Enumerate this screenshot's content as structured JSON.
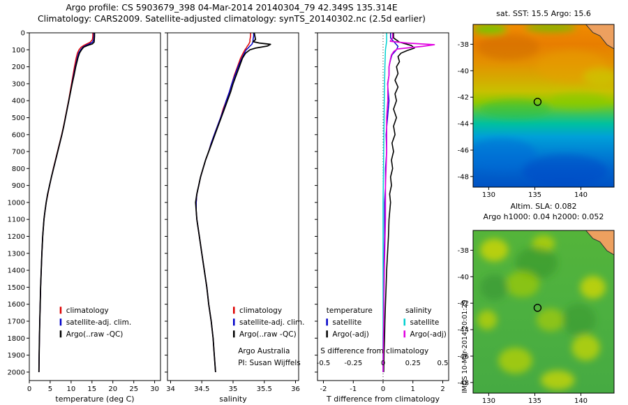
{
  "header": {
    "title_line1": "Argo profile: CS 5903679_398 04-Mar-2014 20140304_79 42.349S 135.314E",
    "title_line2": "Climatology: CARS2009. Satellite-adjusted climatology: synTS_20140302.nc (2.5d earlier)"
  },
  "watermark": "IMOS 10-Mar-2014 20:01:29",
  "depth_ticks": [
    0,
    100,
    200,
    300,
    400,
    500,
    600,
    700,
    800,
    900,
    1000,
    1100,
    1200,
    1300,
    1400,
    1500,
    1600,
    1700,
    1800,
    1900,
    2000
  ],
  "chart_data": [
    {
      "id": "temperature",
      "type": "line",
      "xlabel": "temperature (deg C)",
      "xlim": [
        0,
        31.4
      ],
      "ylim": [
        0,
        2050
      ],
      "xticks": [
        0,
        5,
        10,
        15,
        20,
        25,
        30
      ],
      "show_depth_labels": true,
      "depth": [
        0,
        20,
        40,
        55,
        65,
        75,
        85,
        100,
        120,
        150,
        200,
        250,
        300,
        350,
        400,
        450,
        500,
        550,
        600,
        650,
        700,
        750,
        800,
        850,
        900,
        950,
        1000,
        1050,
        1100,
        1200,
        1300,
        1400,
        1500,
        1600,
        1700,
        1800,
        1900,
        2000
      ],
      "series": [
        {
          "name": "climatology",
          "color": "#dd0000",
          "width": 1.5,
          "values": [
            15.2,
            15.2,
            15.1,
            14.6,
            13.8,
            13.0,
            12.4,
            11.9,
            11.5,
            11.2,
            10.8,
            10.45,
            10.1,
            9.75,
            9.4,
            9.0,
            8.6,
            8.2,
            7.75,
            7.25,
            6.75,
            6.25,
            5.75,
            5.3,
            4.85,
            4.45,
            4.05,
            3.75,
            3.5,
            3.2,
            3.0,
            2.85,
            2.7,
            2.6,
            2.5,
            2.42,
            2.35,
            2.3
          ]
        },
        {
          "name": "satellite-adj. clim.",
          "color": "#0000c8",
          "width": 1.5,
          "values": [
            15.45,
            15.45,
            15.4,
            15.1,
            14.4,
            13.5,
            12.8,
            12.3,
            11.8,
            11.45,
            11.0,
            10.6,
            10.2,
            9.85,
            9.45,
            9.05,
            8.65,
            8.25,
            7.8,
            7.3,
            6.8,
            6.3,
            5.8,
            5.3,
            4.85,
            4.4,
            4.05,
            3.75,
            3.5,
            3.2,
            3.0,
            2.85,
            2.7,
            2.6,
            2.5,
            2.42,
            2.35,
            2.3
          ]
        },
        {
          "name": "Argo(..raw -QC)",
          "color": "#000000",
          "width": 1.8,
          "values": [
            15.6,
            15.6,
            15.55,
            15.5,
            15.1,
            13.9,
            13.0,
            12.5,
            12.0,
            11.6,
            11.1,
            10.7,
            10.25,
            9.85,
            9.45,
            9.05,
            8.65,
            8.25,
            7.8,
            7.3,
            6.8,
            6.3,
            5.8,
            5.3,
            4.85,
            4.4,
            4.05,
            3.75,
            3.5,
            3.2,
            3.0,
            2.85,
            2.7,
            2.6,
            2.5,
            2.42,
            2.35,
            2.3
          ]
        }
      ],
      "legend": {
        "items": [
          {
            "label": "climatology",
            "color": "#dd0000",
            "x": 8.8,
            "y": 1650
          },
          {
            "label": "satellite-adj. clim.",
            "color": "#0000c8",
            "x": 8.8,
            "y": 1720
          },
          {
            "label": "Argo(..raw -QC)",
            "color": "#000000",
            "x": 8.8,
            "y": 1790
          }
        ]
      }
    },
    {
      "id": "salinity",
      "type": "line",
      "xlabel": "salinity",
      "xlim": [
        33.95,
        36.05
      ],
      "ylim": [
        0,
        2050
      ],
      "xticks": [
        34,
        34.5,
        35,
        35.5,
        36
      ],
      "show_depth_labels": false,
      "depth": [
        0,
        20,
        40,
        52,
        60,
        68,
        78,
        90,
        100,
        120,
        150,
        200,
        250,
        300,
        350,
        400,
        450,
        500,
        550,
        600,
        650,
        700,
        750,
        800,
        850,
        900,
        950,
        1000,
        1050,
        1100,
        1200,
        1300,
        1400,
        1500,
        1600,
        1700,
        1800,
        1900,
        2000
      ],
      "series": [
        {
          "name": "climatology",
          "color": "#dd0000",
          "width": 1.5,
          "values": [
            35.28,
            35.28,
            35.27,
            35.27,
            35.26,
            35.25,
            35.23,
            35.21,
            35.19,
            35.16,
            35.12,
            35.07,
            35.02,
            34.98,
            34.94,
            34.89,
            34.84,
            34.8,
            34.75,
            34.7,
            34.65,
            34.61,
            34.56,
            34.52,
            34.48,
            34.45,
            34.42,
            34.41,
            34.41,
            34.42,
            34.46,
            34.5,
            34.54,
            34.58,
            34.61,
            34.65,
            34.68,
            34.7,
            34.72
          ]
        },
        {
          "name": "satellite-adj. clim.",
          "color": "#0000c8",
          "width": 1.5,
          "values": [
            35.33,
            35.33,
            35.32,
            35.32,
            35.31,
            35.3,
            35.27,
            35.24,
            35.21,
            35.18,
            35.14,
            35.08,
            35.03,
            34.98,
            34.94,
            34.89,
            34.85,
            34.8,
            34.75,
            34.7,
            34.65,
            34.61,
            34.56,
            34.52,
            34.48,
            34.45,
            34.42,
            34.41,
            34.41,
            34.42,
            34.46,
            34.5,
            34.54,
            34.58,
            34.61,
            34.65,
            34.68,
            34.7,
            34.72
          ]
        },
        {
          "name": "Argo(..raw -QC)",
          "color": "#000000",
          "width": 1.8,
          "values": [
            35.34,
            35.35,
            35.36,
            35.32,
            35.42,
            35.6,
            35.55,
            35.36,
            35.27,
            35.2,
            35.15,
            35.1,
            35.05,
            35.0,
            34.96,
            34.91,
            34.86,
            34.81,
            34.76,
            34.71,
            34.66,
            34.61,
            34.56,
            34.52,
            34.48,
            34.45,
            34.42,
            34.4,
            34.41,
            34.42,
            34.46,
            34.5,
            34.54,
            34.58,
            34.61,
            34.65,
            34.68,
            34.7,
            34.72
          ]
        }
      ],
      "legend": {
        "items": [
          {
            "label": "climatology",
            "color": "#dd0000",
            "x": 35.1,
            "y": 1650
          },
          {
            "label": "satellite-adj. clim.",
            "color": "#0000c8",
            "x": 35.1,
            "y": 1720
          },
          {
            "label": "Argo(..raw -QC)",
            "color": "#000000",
            "x": 35.1,
            "y": 1790
          }
        ]
      },
      "annotations": [
        {
          "label": "Argo Australia",
          "x": 35.08,
          "y": 1890
        },
        {
          "label": "PI: Susan Wijffels",
          "x": 35.08,
          "y": 1960
        }
      ]
    },
    {
      "id": "difference",
      "type": "line",
      "xlabel": "T difference from climatology",
      "xlim": [
        -2.2,
        2.2
      ],
      "ylim": [
        0,
        2050
      ],
      "xticks": [
        -2,
        -1,
        0,
        1,
        2
      ],
      "show_depth_labels": false,
      "zero_line": true,
      "series": [
        {
          "name": "T satellite - climatology",
          "color": "#0000c8",
          "width": 1.4,
          "depth": [
            0,
            30,
            60,
            80,
            100,
            130,
            160,
            200,
            250,
            300,
            400,
            500,
            600,
            700,
            800,
            900,
            1000,
            1200,
            1400,
            1600,
            1800,
            2000
          ],
          "values": [
            0.25,
            0.25,
            0.4,
            0.5,
            0.45,
            0.3,
            0.25,
            0.2,
            0.2,
            0.15,
            0.2,
            0.15,
            0.1,
            0.12,
            0.08,
            0.08,
            0.05,
            0.05,
            0.02,
            0.02,
            0.0,
            0.0
          ]
        },
        {
          "name": "T Argo(-adj) - climatology",
          "color": "#000000",
          "width": 1.6,
          "depth": [
            0,
            30,
            55,
            75,
            90,
            105,
            120,
            140,
            170,
            200,
            240,
            280,
            320,
            360,
            400,
            450,
            500,
            550,
            600,
            650,
            700,
            750,
            800,
            850,
            900,
            950,
            1000,
            1100,
            1200,
            1300,
            1400,
            1500,
            1600,
            1700,
            1800,
            1900,
            2000
          ],
          "values": [
            0.35,
            0.35,
            0.55,
            0.95,
            1.05,
            0.8,
            0.6,
            0.5,
            0.55,
            0.45,
            0.5,
            0.4,
            0.5,
            0.4,
            0.45,
            0.35,
            0.45,
            0.35,
            0.4,
            0.3,
            0.35,
            0.28,
            0.32,
            0.25,
            0.28,
            0.22,
            0.25,
            0.2,
            0.18,
            0.15,
            0.12,
            0.1,
            0.08,
            0.06,
            0.05,
            0.03,
            0.02
          ]
        },
        {
          "name": "S satellite - climatology",
          "color": "#00d0d0",
          "width": 1.5,
          "x_scale": 4,
          "depth": [
            0,
            50,
            100,
            200,
            400,
            700,
            1000,
            1500,
            2000
          ],
          "values": [
            0.03,
            0.03,
            0.02,
            0.015,
            0.01,
            0.005,
            0.0,
            0.0,
            0.0
          ]
        },
        {
          "name": "S Argo(-adj) - climatology",
          "color": "#e000e0",
          "width": 1.7,
          "x_scale": 4,
          "depth": [
            0,
            30,
            50,
            60,
            70,
            80,
            95,
            110,
            130,
            160,
            200,
            250,
            300,
            400,
            500,
            700,
            900,
            1100,
            1400,
            1700,
            2000
          ],
          "values": [
            0.08,
            0.08,
            0.06,
            0.2,
            0.43,
            0.33,
            0.12,
            0.09,
            0.07,
            0.06,
            0.05,
            0.05,
            0.04,
            0.04,
            0.03,
            0.03,
            0.02,
            0.02,
            0.01,
            0.005,
            0.0
          ]
        }
      ],
      "annotations": [
        {
          "label": "temperature",
          "x": -1.9,
          "y": 1650
        },
        {
          "label": "salinity",
          "x": 0.75,
          "y": 1650
        }
      ],
      "legend": {
        "items": [
          {
            "label": "satellite",
            "color": "#0000c8",
            "x": -1.7,
            "y": 1720
          },
          {
            "label": "Argo(-adj)",
            "color": "#000000",
            "x": -1.7,
            "y": 1790
          },
          {
            "label": "satellite",
            "color": "#00d0d0",
            "x": 0.9,
            "y": 1720
          },
          {
            "label": "Argo(-adj)",
            "color": "#e000e0",
            "x": 0.9,
            "y": 1790
          }
        ]
      },
      "s_axis": {
        "label": "S difference from climatology",
        "label_x": -2.1,
        "label_y": 1890,
        "ticks_y": 1960,
        "ticks": [
          {
            "x": -2,
            "label": "-0.5"
          },
          {
            "x": -1,
            "label": "-0.25"
          },
          {
            "x": 0,
            "label": "0"
          },
          {
            "x": 1,
            "label": "0.25"
          },
          {
            "x": 2,
            "label": "0.5"
          }
        ]
      }
    }
  ],
  "maps": [
    {
      "id": "sst",
      "title": "sat. SST: 15.5 Argo: 15.6",
      "lon_range": [
        128.3,
        143.6
      ],
      "lat_range": [
        -36.5,
        -48.8
      ],
      "lon_ticks": [
        130,
        135,
        140
      ],
      "lat_ticks": [
        -38,
        -40,
        -42,
        -44,
        -46,
        -48
      ],
      "marker": {
        "lon": 135.3,
        "lat": -42.35
      },
      "land_color": "#eda05f",
      "land_points": [
        [
          0.8,
          0
        ],
        [
          1,
          0
        ],
        [
          1,
          0.15
        ],
        [
          0.95,
          0.125
        ],
        [
          0.9,
          0.07
        ],
        [
          0.85,
          0.05
        ]
      ],
      "gradient": [
        [
          "0",
          "#f08c00"
        ],
        [
          "0.12",
          "#e87e00"
        ],
        [
          "0.24",
          "#e39200"
        ],
        [
          "0.33",
          "#d6a900"
        ],
        [
          "0.41",
          "#c8c000"
        ],
        [
          "0.48",
          "#92c800"
        ],
        [
          "0.55",
          "#3cc45c"
        ],
        [
          "0.61",
          "#00c0a0"
        ],
        [
          "0.69",
          "#00a0d8"
        ],
        [
          "0.79",
          "#0080d4"
        ],
        [
          "0.9",
          "#0062cc"
        ],
        [
          "1",
          "#0052c4"
        ]
      ],
      "blobs": [
        [
          0.12,
          0.03,
          0.12,
          0.03,
          "#58d400",
          0.8
        ],
        [
          0.55,
          0.02,
          0.18,
          0.025,
          "#50cc00",
          0.7
        ],
        [
          0.25,
          0.14,
          0.22,
          0.08,
          "#d06c00",
          0.55
        ],
        [
          0.7,
          0.26,
          0.25,
          0.1,
          "#e8a000",
          0.5
        ],
        [
          0.9,
          0.32,
          0.12,
          0.05,
          "#c8d000",
          0.55
        ],
        [
          0.3,
          0.52,
          0.25,
          0.06,
          "#2cc040",
          0.5
        ],
        [
          0.75,
          0.47,
          0.2,
          0.05,
          "#84cc00",
          0.5
        ],
        [
          0.2,
          0.8,
          0.25,
          0.1,
          "#0068d8",
          0.5
        ],
        [
          0.65,
          0.9,
          0.3,
          0.1,
          "#0048c8",
          0.5
        ]
      ]
    },
    {
      "id": "sla",
      "title_line1": "Altim. SLA: 0.082",
      "title_line2": "Argo h1000: 0.04 h2000: 0.052",
      "lon_range": [
        128.3,
        143.6
      ],
      "lat_range": [
        -36.5,
        -48.8
      ],
      "lon_ticks": [
        130,
        135,
        140
      ],
      "lat_ticks": [
        -38,
        -40,
        -42,
        -44,
        -46,
        -48
      ],
      "marker": {
        "lon": 135.3,
        "lat": -42.35
      },
      "land_color": "#eda05f",
      "land_points": [
        [
          0.8,
          0
        ],
        [
          1,
          0
        ],
        [
          1,
          0.15
        ],
        [
          0.95,
          0.125
        ],
        [
          0.9,
          0.07
        ],
        [
          0.85,
          0.05
        ]
      ],
      "gradient": [
        [
          "0",
          "#54b43a"
        ],
        [
          "0.5",
          "#4cb040"
        ],
        [
          "1",
          "#46aa42"
        ]
      ],
      "blobs": [
        [
          0.15,
          0.12,
          0.1,
          0.07,
          "#d8d800",
          0.75
        ],
        [
          0.5,
          0.08,
          0.08,
          0.05,
          "#c8d400",
          0.7
        ],
        [
          0.45,
          0.2,
          0.15,
          0.1,
          "#2e8c28",
          0.45
        ],
        [
          0.85,
          0.35,
          0.09,
          0.07,
          "#d8d800",
          0.75
        ],
        [
          0.35,
          0.33,
          0.12,
          0.08,
          "#a8cc00",
          0.65
        ],
        [
          0.15,
          0.35,
          0.1,
          0.08,
          "#339030",
          0.5
        ],
        [
          0.1,
          0.55,
          0.07,
          0.06,
          "#c8d400",
          0.7
        ],
        [
          0.55,
          0.55,
          0.1,
          0.07,
          "#b8d000",
          0.6
        ],
        [
          0.75,
          0.55,
          0.12,
          0.1,
          "#2e8c28",
          0.4
        ],
        [
          0.8,
          0.72,
          0.1,
          0.08,
          "#d0d800",
          0.7
        ],
        [
          0.3,
          0.8,
          0.12,
          0.08,
          "#c0d400",
          0.7
        ],
        [
          0.6,
          0.92,
          0.12,
          0.06,
          "#d8dc00",
          0.7
        ]
      ]
    }
  ]
}
